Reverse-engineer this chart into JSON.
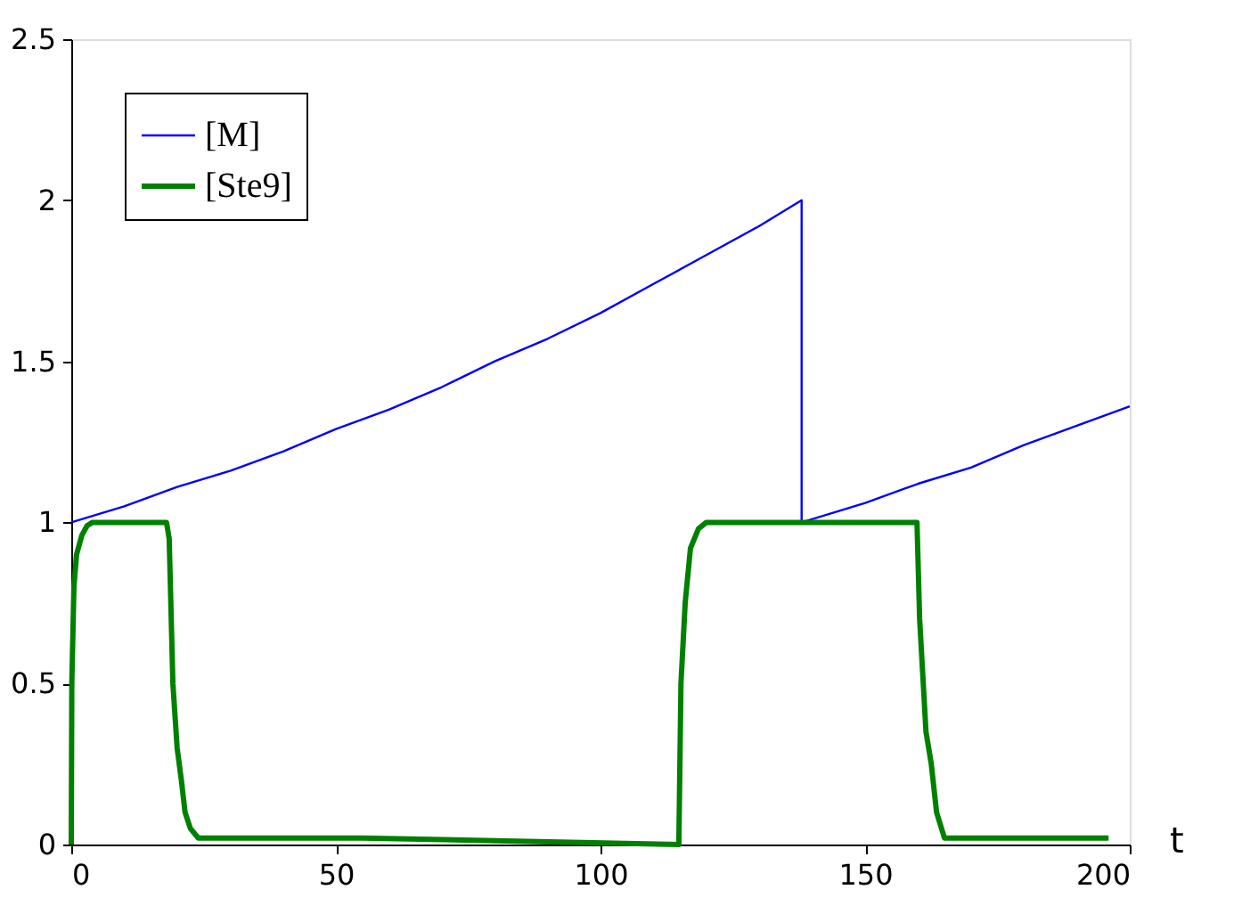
{
  "chart_data": {
    "type": "line",
    "xlabel": "t",
    "xlim": [
      0,
      200
    ],
    "xticks": [
      0,
      50,
      100,
      150,
      200
    ],
    "ylim": [
      0,
      2.5
    ],
    "yticks": [
      0,
      0.5,
      1,
      1.5,
      2,
      2.5
    ],
    "grid": false,
    "legend": "top left",
    "marker": "none",
    "line_style": "solid",
    "series": [
      {
        "name": "[M]",
        "color": "#0000ff",
        "x": [
          0,
          10,
          20,
          30,
          40,
          50,
          60,
          70,
          80,
          90,
          100,
          110,
          120,
          130,
          138,
          138,
          150,
          160,
          170,
          180,
          190,
          200
        ],
        "values": [
          1,
          1.05,
          1.11,
          1.16,
          1.22,
          1.29,
          1.35,
          1.42,
          1.5,
          1.57,
          1.65,
          1.74,
          1.83,
          1.92,
          2,
          1,
          1.06,
          1.12,
          1.17,
          1.24,
          1.3,
          1.36
        ]
      },
      {
        "name": "[Ste9]",
        "color": "#008000",
        "x": [
          0,
          0.1,
          0.5,
          1,
          2,
          3,
          4,
          18,
          18.5,
          19.2,
          20,
          20.8,
          21.5,
          22.5,
          24,
          55,
          114.8,
          115.2,
          116,
          117,
          118.5,
          120,
          159.8,
          160.3,
          161.5,
          162.5,
          163.5,
          165,
          196
        ],
        "values": [
          0,
          0.5,
          0.8,
          0.9,
          0.96,
          0.99,
          1,
          1,
          0.95,
          0.5,
          0.3,
          0.2,
          0.1,
          0.05,
          0.02,
          0.02,
          0,
          0.5,
          0.75,
          0.92,
          0.98,
          1,
          1,
          0.7,
          0.35,
          0.25,
          0.1,
          0.02,
          0.02
        ]
      }
    ]
  }
}
